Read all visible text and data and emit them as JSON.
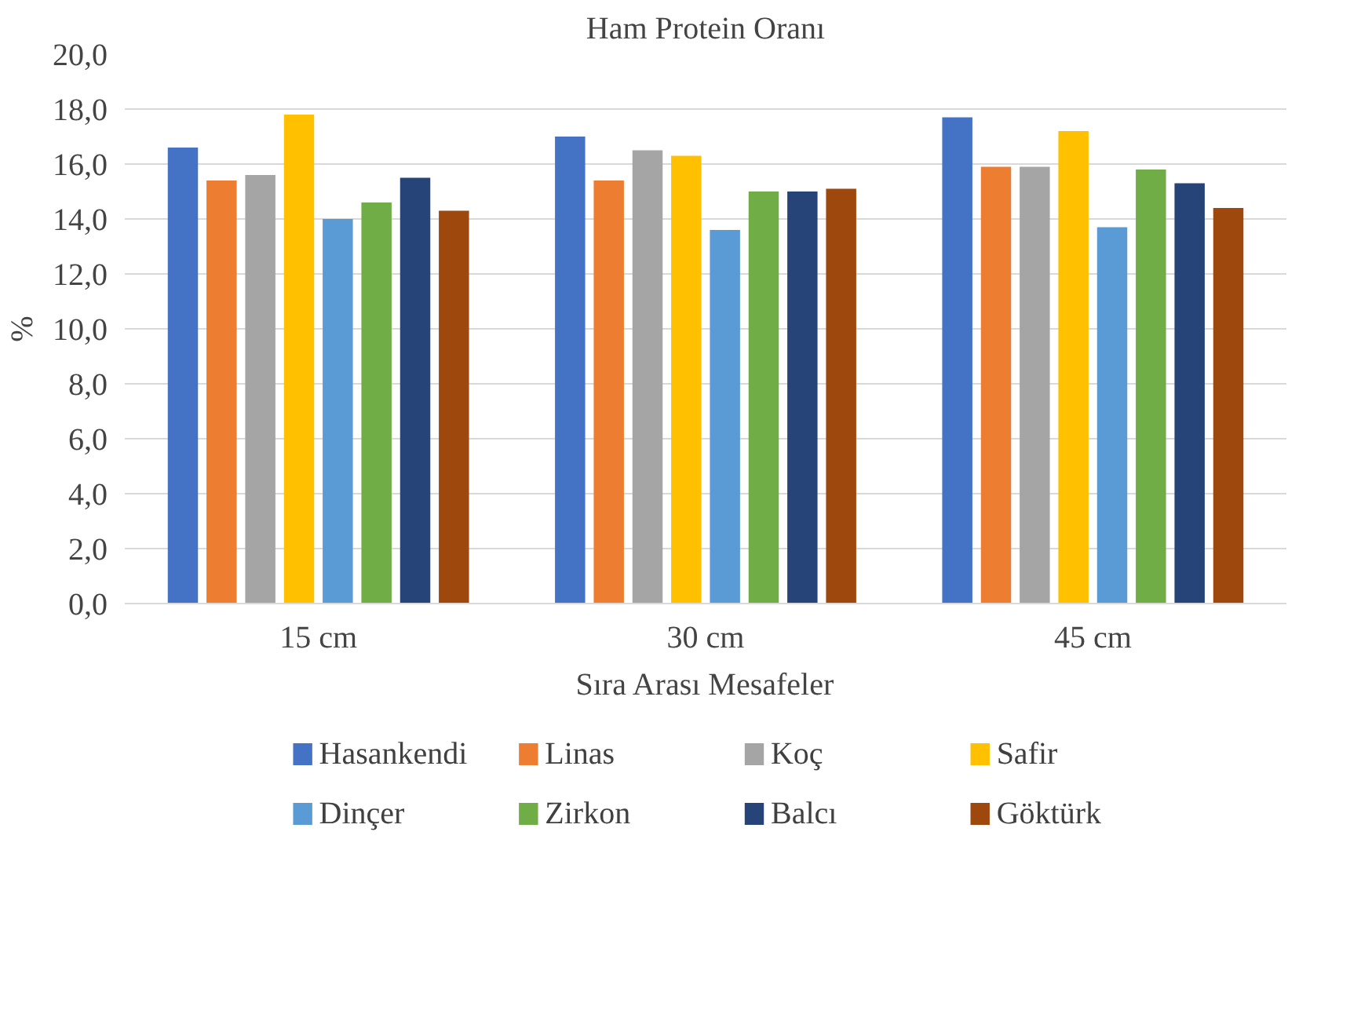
{
  "chart_data": {
    "type": "bar",
    "title": "Ham Protein Oranı",
    "xlabel": "Sıra Arası Mesafeler",
    "ylabel": "%",
    "categories": [
      "15 cm",
      "30 cm",
      "45 cm"
    ],
    "series": [
      {
        "name": "Hasankendi",
        "color": "#4472c4",
        "values": [
          16.6,
          17.0,
          17.7
        ]
      },
      {
        "name": "Linas",
        "color": "#ed7d31",
        "values": [
          15.4,
          15.4,
          15.9
        ]
      },
      {
        "name": "Koç",
        "color": "#a5a5a5",
        "values": [
          15.6,
          16.5,
          15.9
        ]
      },
      {
        "name": "Safir",
        "color": "#ffc000",
        "values": [
          17.8,
          16.3,
          17.2
        ]
      },
      {
        "name": "Dinçer",
        "color": "#5b9bd5",
        "values": [
          14.0,
          13.6,
          13.7
        ]
      },
      {
        "name": "Zirkon",
        "color": "#70ad47",
        "values": [
          14.6,
          15.0,
          15.8
        ]
      },
      {
        "name": "Balcı",
        "color": "#264478",
        "values": [
          15.5,
          15.0,
          15.3
        ]
      },
      {
        "name": "Göktürk",
        "color": "#9e480e",
        "values": [
          14.3,
          15.1,
          14.4
        ]
      }
    ],
    "ylim": [
      0,
      20
    ],
    "yticks": [
      {
        "value": 0,
        "label": "0,0"
      },
      {
        "value": 2,
        "label": "2,0"
      },
      {
        "value": 4,
        "label": "4,0"
      },
      {
        "value": 6,
        "label": "6,0"
      },
      {
        "value": 8,
        "label": "8,0"
      },
      {
        "value": 10,
        "label": "10,0"
      },
      {
        "value": 12,
        "label": "12,0"
      },
      {
        "value": 14,
        "label": "14,0"
      },
      {
        "value": 16,
        "label": "16,0"
      },
      {
        "value": 18,
        "label": "18,0"
      },
      {
        "value": 20,
        "label": "20,0"
      }
    ],
    "grid": "y",
    "legend": "bottom"
  }
}
